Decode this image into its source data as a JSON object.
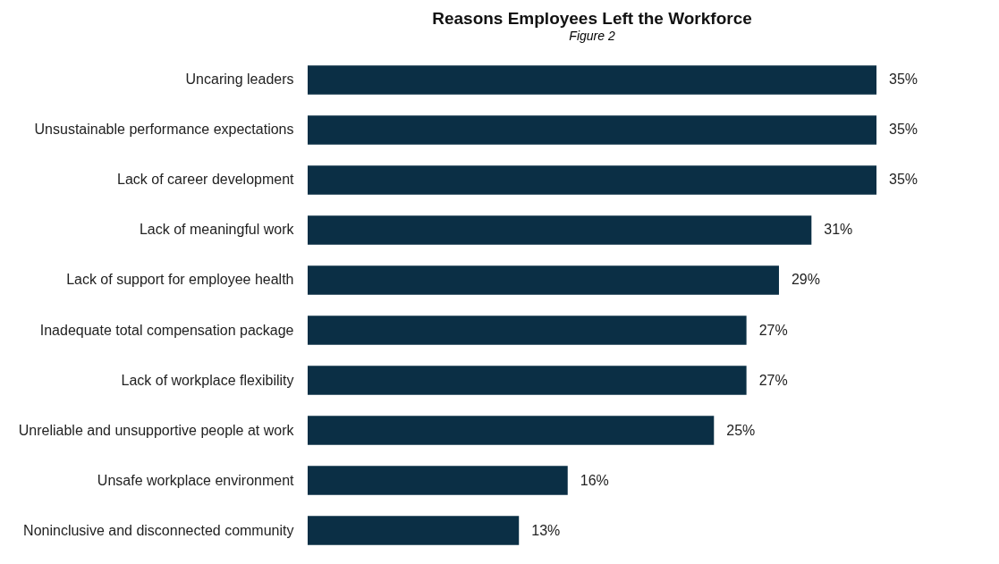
{
  "chart_data": {
    "type": "bar",
    "orientation": "horizontal",
    "title": "Reasons Employees Left the Workforce",
    "annotations": [
      "Figure 2"
    ],
    "categories": [
      "Uncaring leaders",
      "Unsustainable performance expectations",
      "Lack of career development",
      "Lack of meaningful work",
      "Lack of support for employee health",
      "Inadequate total compensation package",
      "Lack of workplace flexibility",
      "Unreliable and unsupportive people at work",
      "Unsafe workplace environment",
      "Noninclusive and disconnected community"
    ],
    "values": [
      35,
      35,
      35,
      31,
      29,
      27,
      27,
      25,
      16,
      13
    ],
    "value_labels": [
      "35%",
      "35%",
      "35%",
      "31%",
      "29%",
      "27%",
      "27%",
      "25%",
      "16%",
      "13%"
    ],
    "color": "#0b2f45",
    "grid": false,
    "tick_labels": "y"
  }
}
